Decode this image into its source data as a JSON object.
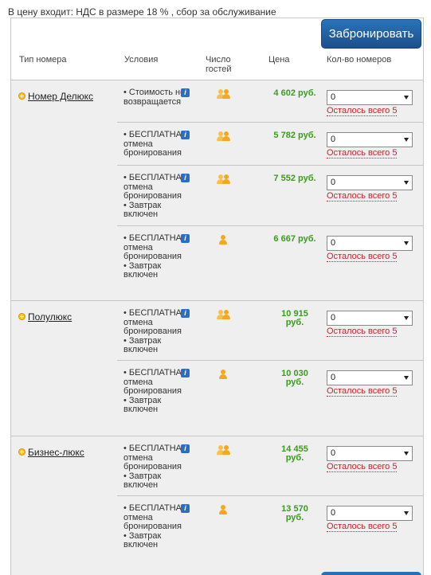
{
  "vat_note": "В цену входит: НДС в размере 18 % , сбор за обслуживание",
  "book_label": "Забронировать",
  "headers": {
    "room_type": "Тип номера",
    "conditions": "Условия",
    "guests_line1": "Число",
    "guests_line2": "гостей",
    "price": "Цена",
    "rooms_count": "Кол-во номеров"
  },
  "rooms": [
    {
      "name": "Номер Делюкс",
      "rates": [
        {
          "cond": [
            "• Стоимость не",
            "возвращается"
          ],
          "guests": 2,
          "price": [
            "4 602 руб."
          ],
          "qty": "0",
          "left": "Осталось всего 5"
        },
        {
          "cond": [
            "• БЕСПЛАТНАЯ",
            "отмена",
            "бронирования"
          ],
          "guests": 2,
          "price": [
            "5 782 руб."
          ],
          "qty": "0",
          "left": "Осталось всего 5"
        },
        {
          "cond": [
            "• БЕСПЛАТНАЯ",
            "отмена",
            "бронирования",
            "•  Завтрак",
            "включен"
          ],
          "guests": 2,
          "price": [
            "7 552 руб."
          ],
          "qty": "0",
          "left": "Осталось всего 5"
        },
        {
          "cond": [
            "• БЕСПЛАТНАЯ",
            "отмена",
            "бронирования",
            "•  Завтрак",
            "включен"
          ],
          "guests": 1,
          "price": [
            "6 667 руб."
          ],
          "qty": "0",
          "left": "Осталось всего 5"
        }
      ]
    },
    {
      "name": "Полулюкс",
      "rates": [
        {
          "cond": [
            "• БЕСПЛАТНАЯ",
            "отмена",
            "бронирования",
            "•  Завтрак",
            "включен"
          ],
          "guests": 2,
          "price": [
            "10 915",
            "руб."
          ],
          "qty": "0",
          "left": "Осталось всего 5"
        },
        {
          "cond": [
            "• БЕСПЛАТНАЯ",
            "отмена",
            "бронирования",
            "•  Завтрак",
            "включен"
          ],
          "guests": 1,
          "price": [
            "10 030",
            "руб."
          ],
          "qty": "0",
          "left": "Осталось всего 5"
        }
      ]
    },
    {
      "name": "Бизнес-люкс",
      "rates": [
        {
          "cond": [
            "• БЕСПЛАТНАЯ",
            "отмена",
            "бронирования",
            "•  Завтрак",
            "включен"
          ],
          "guests": 2,
          "price": [
            "14 455",
            "руб."
          ],
          "qty": "0",
          "left": "Осталось всего 5"
        },
        {
          "cond": [
            "• БЕСПЛАТНАЯ",
            "отмена",
            "бронирования",
            "•  Завтрак",
            "включен"
          ],
          "guests": 1,
          "price": [
            "13 570",
            "руб."
          ],
          "qty": "0",
          "left": "Осталось всего 5"
        }
      ]
    }
  ]
}
